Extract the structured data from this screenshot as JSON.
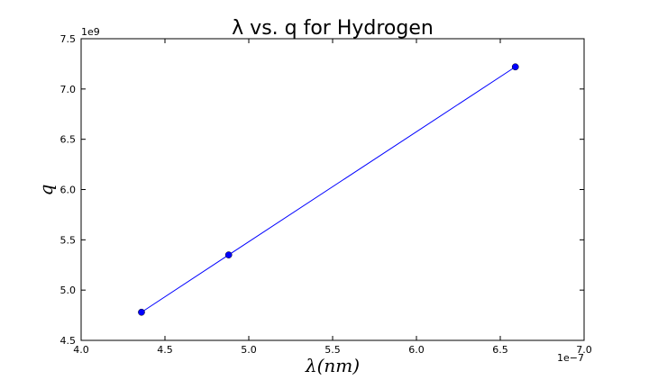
{
  "chart_data": {
    "type": "line",
    "title": "λ vs. q for Hydrogen",
    "xlabel": "λ(nm)",
    "ylabel": "q",
    "x_multiplier": "1e−7",
    "y_multiplier": "1e9",
    "xlim": [
      4e-07,
      7e-07
    ],
    "ylim": [
      4500000000.0,
      7500000000.0
    ],
    "x_ticks": [
      "4.0",
      "4.5",
      "5.0",
      "5.5",
      "6.0",
      "6.5",
      "7.0"
    ],
    "y_ticks": [
      "4.5",
      "5.0",
      "5.5",
      "6.0",
      "6.5",
      "7.0",
      "7.5"
    ],
    "grid": false,
    "series": [
      {
        "x": [
          4.36e-07,
          4.88e-07,
          6.59e-07
        ],
        "y": [
          4780000000.0,
          5350000000.0,
          7220000000.0
        ],
        "color": "#0000ff",
        "marker": "circle"
      }
    ]
  }
}
